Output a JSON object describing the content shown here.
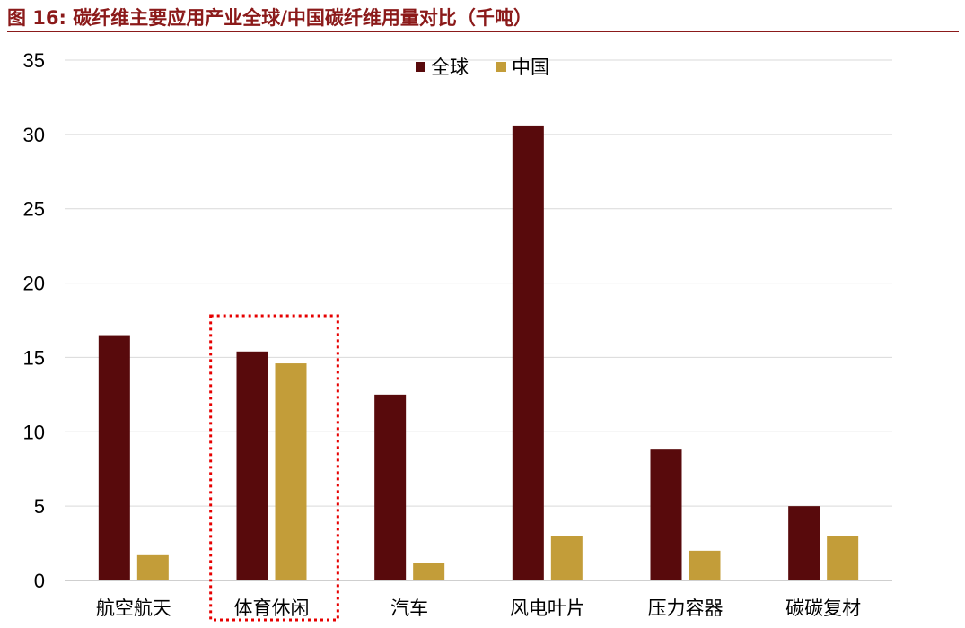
{
  "page": {
    "title": "图 16:  碳纤维主要应用产业全球/中国碳纤维用量对比（千吨）"
  },
  "colors": {
    "title": "#8b1a1a",
    "series_global": "#580a0c",
    "series_china": "#c39d39",
    "highlight_box": "#e60000",
    "gridline": "#d9d9d9",
    "axis": "#bfbfbf"
  },
  "chart_data": {
    "type": "bar",
    "title": "碳纤维主要应用产业全球/中国碳纤维用量对比（千吨）",
    "categories": [
      "航空航天",
      "体育休闲",
      "汽车",
      "风电叶片",
      "压力容器",
      "碳碳复材"
    ],
    "series": [
      {
        "name": "全球",
        "color": "#580a0c",
        "values": [
          16.5,
          15.4,
          12.5,
          30.6,
          8.8,
          5.0
        ]
      },
      {
        "name": "中国",
        "color": "#c39d39",
        "values": [
          1.7,
          14.6,
          1.2,
          3.0,
          2.0,
          3.0
        ]
      }
    ],
    "ylim": [
      0,
      35
    ],
    "yticks": [
      0,
      5,
      10,
      15,
      20,
      25,
      30,
      35
    ],
    "grid": true,
    "legend_position": "top-center",
    "highlighted_category": "体育休闲",
    "xlabel": "",
    "ylabel": ""
  }
}
